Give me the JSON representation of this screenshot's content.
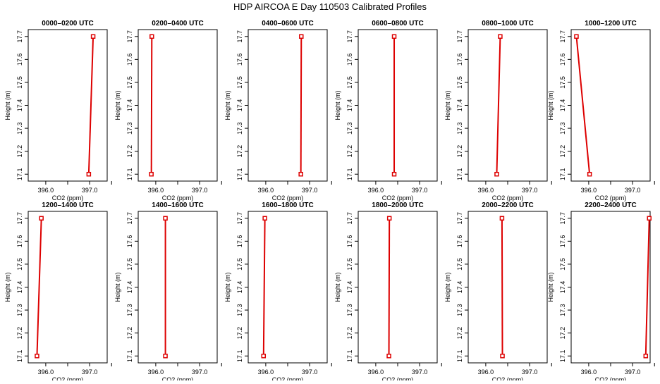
{
  "title": "HDP AIRCOA E  Day 110503  Calibrated Profiles",
  "chart_data": [
    {
      "type": "line",
      "title": "0000–0200 UTC",
      "xlabel": "CO2 (ppm)",
      "ylabel": "Height (m)",
      "x_ticks": [
        "396.0",
        "397.0"
      ],
      "y_ticks": [
        "17.1",
        "17.2",
        "17.3",
        "17.4",
        "17.5",
        "17.6",
        "17.7"
      ],
      "xlim": [
        395.6,
        397.4
      ],
      "ylim": [
        17.07,
        17.73
      ],
      "grid": false,
      "color": "#dd0000",
      "points": [
        {
          "x": 396.98,
          "y": 17.1
        },
        {
          "x": 397.08,
          "y": 17.7
        }
      ]
    },
    {
      "type": "line",
      "title": "0200–0400 UTC",
      "xlabel": "CO2 (ppm)",
      "ylabel": "Height (m)",
      "x_ticks": [
        "396.0",
        "397.0"
      ],
      "y_ticks": [
        "17.1",
        "17.2",
        "17.3",
        "17.4",
        "17.5",
        "17.6",
        "17.7"
      ],
      "xlim": [
        395.6,
        397.4
      ],
      "ylim": [
        17.07,
        17.73
      ],
      "grid": false,
      "color": "#dd0000",
      "points": [
        {
          "x": 395.9,
          "y": 17.1
        },
        {
          "x": 395.91,
          "y": 17.7
        }
      ]
    },
    {
      "type": "line",
      "title": "0400–0600 UTC",
      "xlabel": "CO2 (ppm)",
      "ylabel": "Height (m)",
      "x_ticks": [
        "396.0",
        "397.0"
      ],
      "y_ticks": [
        "17.1",
        "17.2",
        "17.3",
        "17.4",
        "17.5",
        "17.6",
        "17.7"
      ],
      "xlim": [
        395.6,
        397.4
      ],
      "ylim": [
        17.07,
        17.73
      ],
      "grid": false,
      "color": "#dd0000",
      "points": [
        {
          "x": 396.8,
          "y": 17.1
        },
        {
          "x": 396.81,
          "y": 17.7
        }
      ]
    },
    {
      "type": "line",
      "title": "0600–0800 UTC",
      "xlabel": "CO2 (ppm)",
      "ylabel": "Height (m)",
      "x_ticks": [
        "396.0",
        "397.0"
      ],
      "y_ticks": [
        "17.1",
        "17.2",
        "17.3",
        "17.4",
        "17.5",
        "17.6",
        "17.7"
      ],
      "xlim": [
        395.6,
        397.4
      ],
      "ylim": [
        17.07,
        17.73
      ],
      "grid": false,
      "color": "#dd0000",
      "points": [
        {
          "x": 396.42,
          "y": 17.1
        },
        {
          "x": 396.42,
          "y": 17.7
        }
      ]
    },
    {
      "type": "line",
      "title": "0800–1000 UTC",
      "xlabel": "CO2 (ppm)",
      "ylabel": "Height (m)",
      "x_ticks": [
        "396.0",
        "397.0"
      ],
      "y_ticks": [
        "17.1",
        "17.2",
        "17.3",
        "17.4",
        "17.5",
        "17.6",
        "17.7"
      ],
      "xlim": [
        395.6,
        397.4
      ],
      "ylim": [
        17.07,
        17.73
      ],
      "grid": false,
      "color": "#dd0000",
      "points": [
        {
          "x": 396.25,
          "y": 17.1
        },
        {
          "x": 396.33,
          "y": 17.7
        }
      ]
    },
    {
      "type": "line",
      "title": "1000–1200 UTC",
      "xlabel": "CO2 (ppm)",
      "ylabel": "Height (m)",
      "x_ticks": [
        "396.0",
        "397.0"
      ],
      "y_ticks": [
        "17.1",
        "17.2",
        "17.3",
        "17.4",
        "17.5",
        "17.6",
        "17.7"
      ],
      "xlim": [
        395.6,
        397.4
      ],
      "ylim": [
        17.07,
        17.73
      ],
      "grid": false,
      "color": "#dd0000",
      "points": [
        {
          "x": 396.02,
          "y": 17.1
        },
        {
          "x": 395.72,
          "y": 17.7
        }
      ]
    },
    {
      "type": "line",
      "title": "1200–1400 UTC",
      "xlabel": "CO2 (ppm)",
      "ylabel": "Height (m)",
      "x_ticks": [
        "396.0",
        "397.0"
      ],
      "y_ticks": [
        "17.1",
        "17.2",
        "17.3",
        "17.4",
        "17.5",
        "17.6",
        "17.7"
      ],
      "xlim": [
        395.6,
        397.4
      ],
      "ylim": [
        17.07,
        17.73
      ],
      "grid": false,
      "color": "#dd0000",
      "points": [
        {
          "x": 395.8,
          "y": 17.1
        },
        {
          "x": 395.9,
          "y": 17.7
        }
      ]
    },
    {
      "type": "line",
      "title": "1400–1600 UTC",
      "xlabel": "CO2 (ppm)",
      "ylabel": "Height (m)",
      "x_ticks": [
        "396.0",
        "397.0"
      ],
      "y_ticks": [
        "17.1",
        "17.2",
        "17.3",
        "17.4",
        "17.5",
        "17.6",
        "17.7"
      ],
      "xlim": [
        395.6,
        397.4
      ],
      "ylim": [
        17.07,
        17.73
      ],
      "grid": false,
      "color": "#dd0000",
      "points": [
        {
          "x": 396.22,
          "y": 17.1
        },
        {
          "x": 396.22,
          "y": 17.7
        }
      ]
    },
    {
      "type": "line",
      "title": "1600–1800 UTC",
      "xlabel": "CO2 (ppm)",
      "ylabel": "Height (m)",
      "x_ticks": [
        "396.0",
        "397.0"
      ],
      "y_ticks": [
        "17.1",
        "17.2",
        "17.3",
        "17.4",
        "17.5",
        "17.6",
        "17.7"
      ],
      "xlim": [
        395.6,
        397.4
      ],
      "ylim": [
        17.07,
        17.73
      ],
      "grid": false,
      "color": "#dd0000",
      "points": [
        {
          "x": 395.95,
          "y": 17.1
        },
        {
          "x": 395.98,
          "y": 17.7
        }
      ]
    },
    {
      "type": "line",
      "title": "1800–2000 UTC",
      "xlabel": "CO2 (ppm)",
      "ylabel": "Height (m)",
      "x_ticks": [
        "396.0",
        "397.0"
      ],
      "y_ticks": [
        "17.1",
        "17.2",
        "17.3",
        "17.4",
        "17.5",
        "17.6",
        "17.7"
      ],
      "xlim": [
        395.6,
        397.4
      ],
      "ylim": [
        17.07,
        17.73
      ],
      "grid": false,
      "color": "#dd0000",
      "points": [
        {
          "x": 396.3,
          "y": 17.1
        },
        {
          "x": 396.31,
          "y": 17.7
        }
      ]
    },
    {
      "type": "line",
      "title": "2000–2200 UTC",
      "xlabel": "CO2 (ppm)",
      "ylabel": "Height (m)",
      "x_ticks": [
        "396.0",
        "397.0"
      ],
      "y_ticks": [
        "17.1",
        "17.2",
        "17.3",
        "17.4",
        "17.5",
        "17.6",
        "17.7"
      ],
      "xlim": [
        395.6,
        397.4
      ],
      "ylim": [
        17.07,
        17.73
      ],
      "grid": false,
      "color": "#dd0000",
      "points": [
        {
          "x": 396.38,
          "y": 17.1
        },
        {
          "x": 396.37,
          "y": 17.7
        }
      ]
    },
    {
      "type": "line",
      "title": "2200–2400 UTC",
      "xlabel": "CO2 (ppm)",
      "ylabel": "Height (m)",
      "x_ticks": [
        "396.0",
        "397.0"
      ],
      "y_ticks": [
        "17.1",
        "17.2",
        "17.3",
        "17.4",
        "17.5",
        "17.6",
        "17.7"
      ],
      "xlim": [
        395.6,
        397.4
      ],
      "ylim": [
        17.07,
        17.73
      ],
      "grid": false,
      "color": "#dd0000",
      "points": [
        {
          "x": 397.3,
          "y": 17.1
        },
        {
          "x": 397.38,
          "y": 17.7
        }
      ]
    }
  ]
}
